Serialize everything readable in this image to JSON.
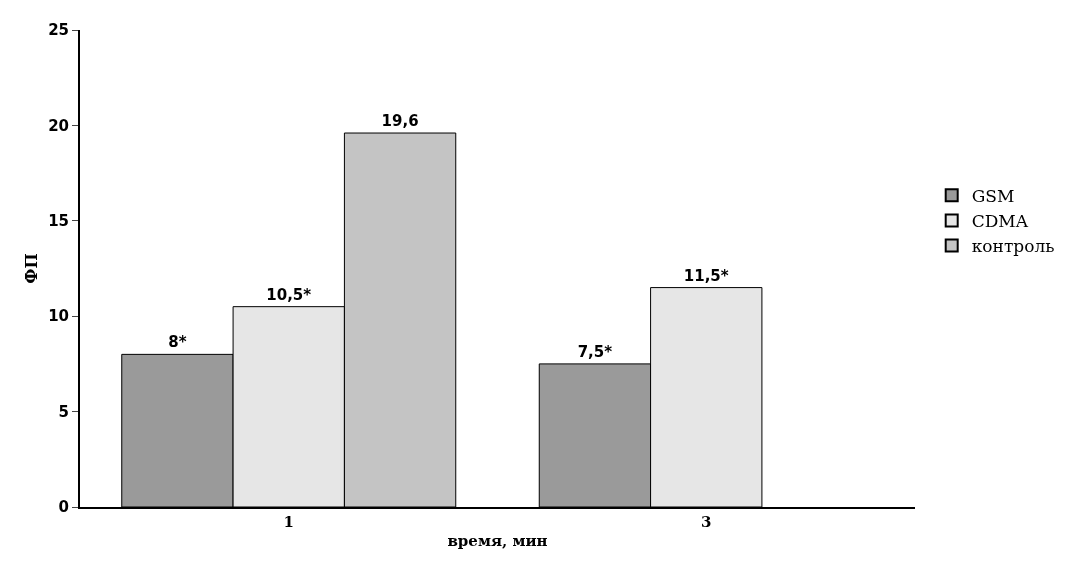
{
  "chart_data": {
    "type": "bar",
    "xlabel": "время, мин",
    "ylabel": "ФП",
    "categories": [
      "1",
      "3"
    ],
    "series": [
      {
        "name": "GSM",
        "color": "#9a9a9a",
        "values": [
          8,
          7.5
        ],
        "value_labels": [
          "8*",
          "7,5*"
        ]
      },
      {
        "name": "CDMA",
        "color": "#e6e6e6",
        "values": [
          10.5,
          11.5
        ],
        "value_labels": [
          "10,5*",
          "11,5*"
        ]
      },
      {
        "name": "контроль",
        "color": "#c4c4c4",
        "values": [
          19.6,
          null
        ],
        "value_labels": [
          "19,6",
          null
        ]
      }
    ],
    "ylim": [
      0,
      25
    ],
    "yticks": [
      0,
      5,
      10,
      15,
      20,
      25
    ],
    "grid": false,
    "legend": "right"
  }
}
